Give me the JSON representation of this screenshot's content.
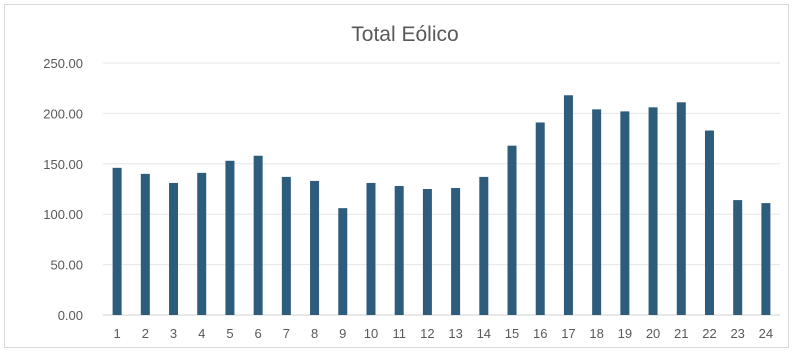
{
  "chart_data": {
    "type": "bar",
    "title": "Total Eólico",
    "xlabel": "",
    "ylabel": "",
    "categories": [
      "1",
      "2",
      "3",
      "4",
      "5",
      "6",
      "7",
      "8",
      "9",
      "10",
      "11",
      "12",
      "13",
      "14",
      "15",
      "16",
      "17",
      "18",
      "19",
      "20",
      "21",
      "22",
      "23",
      "24"
    ],
    "values": [
      146,
      140,
      131,
      141,
      153,
      158,
      137,
      133,
      106,
      131,
      128,
      125,
      126,
      137,
      168,
      191,
      218,
      204,
      202,
      206,
      211,
      183,
      114,
      111
    ],
    "ylim": [
      0,
      250
    ],
    "yticks": [
      "0.00",
      "50.00",
      "100.00",
      "150.00",
      "200.00",
      "250.00"
    ],
    "grid": true,
    "legend": "none",
    "bar_color": "#2e5c7d",
    "grid_color": "#e6e6e6"
  }
}
